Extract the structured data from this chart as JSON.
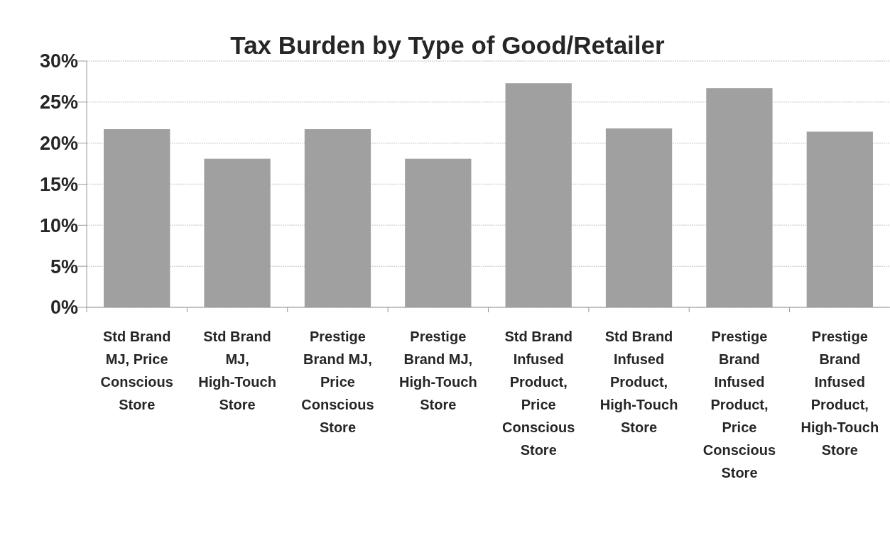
{
  "chart_data": {
    "type": "bar",
    "title": "Tax Burden  by Type of Good/Retailer",
    "categories": [
      "Std Brand MJ, Price Conscious Store",
      "Std Brand MJ, High-Touch Store",
      "Prestige Brand MJ, Price Conscious Store",
      "Prestige Brand MJ, High-Touch Store",
      "Std Brand Infused Product, Price Conscious Store",
      "Std Brand Infused Product, High-Touch Store",
      "Prestige Brand Infused Product, Price Conscious Store",
      "Prestige Brand Infused Product, High-Touch Store"
    ],
    "values": [
      21.7,
      18.1,
      21.7,
      18.1,
      27.3,
      21.8,
      26.7,
      21.4
    ],
    "color": "#a0a0a0",
    "ylim": [
      0,
      30
    ],
    "yticks": [
      {
        "value": 0,
        "label": "0%"
      },
      {
        "value": 5,
        "label": "5%"
      },
      {
        "value": 10,
        "label": "10%"
      },
      {
        "value": 15,
        "label": "15%"
      },
      {
        "value": 20,
        "label": "20%"
      },
      {
        "value": 25,
        "label": "25%"
      },
      {
        "value": 30,
        "label": "30%"
      }
    ],
    "grid": "y"
  }
}
